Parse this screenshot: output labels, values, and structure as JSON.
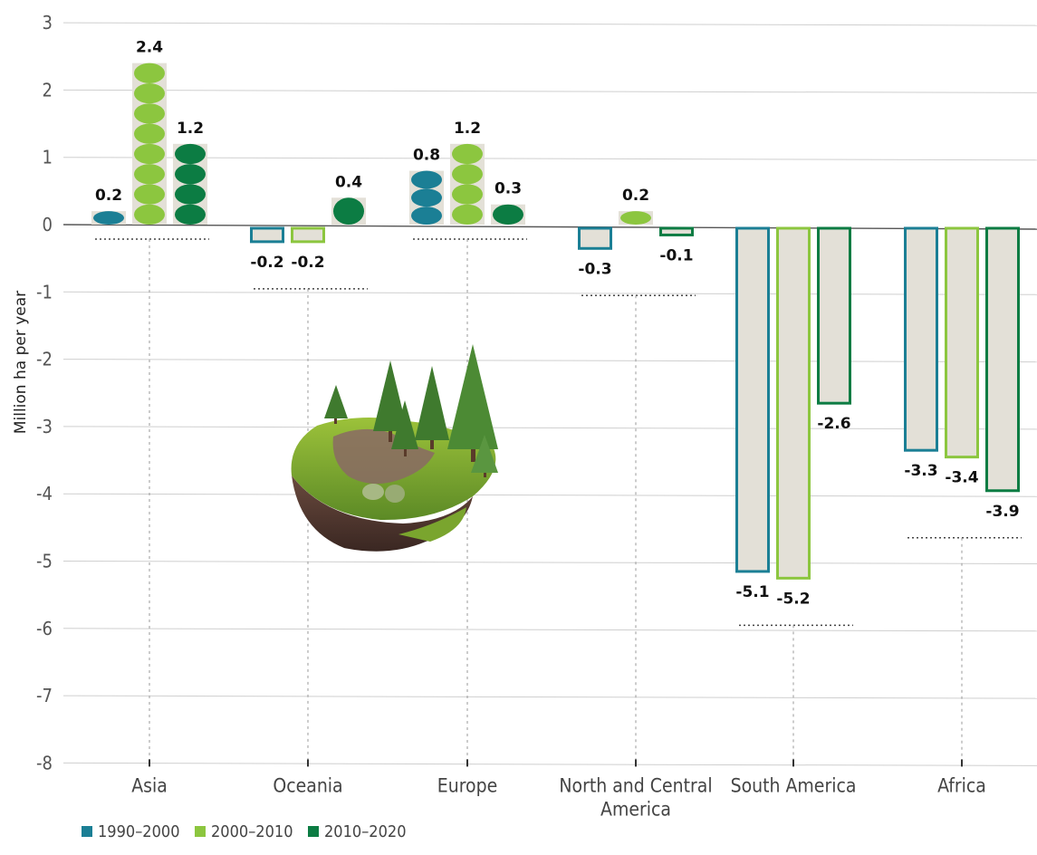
{
  "chart_data": {
    "type": "bar",
    "ylabel": "Million ha per year",
    "ylim": [
      -8,
      3
    ],
    "yticks": [
      3,
      2,
      1,
      0,
      -1,
      -2,
      -3,
      -4,
      -5,
      -6,
      -7,
      -8
    ],
    "grid": true,
    "legend_position": "bottom-left",
    "categories": [
      "Asia",
      "Oceania",
      "Europe",
      "North and Central America",
      "South America",
      "Africa"
    ],
    "category_lines": [
      [
        "Asia"
      ],
      [
        "Oceania"
      ],
      [
        "Europe"
      ],
      [
        "North and Central",
        "America"
      ],
      [
        "South America"
      ],
      [
        "Africa"
      ]
    ],
    "series": [
      {
        "name": "1990–2000",
        "color": "#1b7f95",
        "values": [
          0.2,
          -0.2,
          0.8,
          -0.3,
          -5.1,
          -3.3
        ]
      },
      {
        "name": "2000–2010",
        "color": "#8cc63f",
        "values": [
          2.4,
          -0.2,
          1.2,
          0.2,
          -5.2,
          -3.4
        ]
      },
      {
        "name": "2010–2020",
        "color": "#0c7c43",
        "values": [
          1.2,
          0.4,
          0.3,
          -0.1,
          -2.6,
          -3.9
        ]
      }
    ],
    "bar_fill_negative": "#e3e0d7",
    "illustration": "floating-forest-island"
  }
}
